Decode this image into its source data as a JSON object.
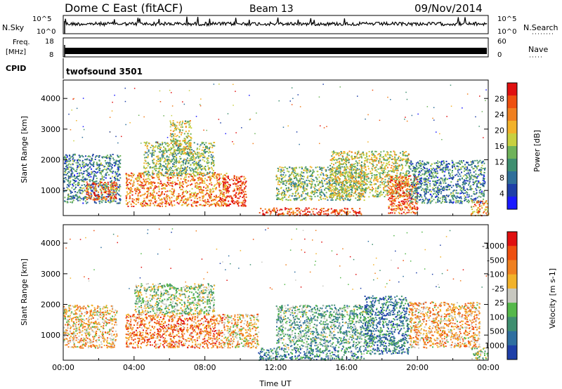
{
  "header": {
    "station": "Dome C East (fitACF)",
    "beam": "Beam 13",
    "date": "09/Nov/2014"
  },
  "strip_labels": {
    "nsky": "N.Sky",
    "nsearch": "N.Search",
    "freq_line1": "Freq.",
    "freq_line2": "[MHz]",
    "nave": "Nave",
    "cpid": "CPID",
    "cpid_value": "twofsound 3501",
    "nsky_ticks": [
      "10^5",
      "10^0"
    ],
    "nsearch_ticks": [
      "10^5",
      "10^0"
    ],
    "freq_ticks": [
      "18",
      "8"
    ],
    "nave_ticks": [
      "60",
      "0"
    ]
  },
  "chart_data": [
    {
      "type": "heatmap",
      "name": "power",
      "ylabel": "Slant Range [km]",
      "xlabel": "",
      "xlim": [
        0,
        24
      ],
      "ylim": [
        180,
        4600
      ],
      "yticks": [
        1000,
        2000,
        3000,
        4000
      ],
      "colorbar": {
        "label": "Power [dB]",
        "ticks": [
          "4",
          "8",
          "12",
          "16",
          "20",
          "24",
          "28"
        ],
        "colors": [
          "#1a1aff",
          "#1e3fa8",
          "#2f6f9a",
          "#3f8f70",
          "#6fb35a",
          "#c8d040",
          "#f2b22a",
          "#f08020",
          "#ee5010",
          "#e01010"
        ]
      },
      "blobs": [
        {
          "x0": 0.0,
          "x1": 3.2,
          "y0": 600,
          "y1": 2200,
          "level": 0.3
        },
        {
          "x0": 1.2,
          "x1": 3.0,
          "y0": 700,
          "y1": 1300,
          "level": 0.8
        },
        {
          "x0": 3.5,
          "x1": 9.2,
          "y0": 500,
          "y1": 1600,
          "level": 0.75
        },
        {
          "x0": 4.5,
          "x1": 8.5,
          "y0": 1500,
          "y1": 2600,
          "level": 0.45
        },
        {
          "x0": 6.0,
          "x1": 7.2,
          "y0": 2200,
          "y1": 3300,
          "level": 0.55
        },
        {
          "x0": 9.0,
          "x1": 10.3,
          "y0": 500,
          "y1": 1500,
          "level": 0.9
        },
        {
          "x0": 11.0,
          "x1": 16.8,
          "y0": 200,
          "y1": 450,
          "level": 0.85
        },
        {
          "x0": 12.0,
          "x1": 17.0,
          "y0": 700,
          "y1": 1800,
          "level": 0.45
        },
        {
          "x0": 15.0,
          "x1": 19.5,
          "y0": 800,
          "y1": 2300,
          "level": 0.55
        },
        {
          "x0": 18.3,
          "x1": 20.0,
          "y0": 250,
          "y1": 1500,
          "level": 0.85
        },
        {
          "x0": 19.5,
          "x1": 23.8,
          "y0": 600,
          "y1": 2000,
          "level": 0.3
        },
        {
          "x0": 23.0,
          "x1": 24.0,
          "y0": 200,
          "y1": 700,
          "level": 0.7
        }
      ]
    },
    {
      "type": "heatmap",
      "name": "velocity",
      "ylabel": "Slant Range [km]",
      "xlabel": "Time UT",
      "xlim": [
        0,
        24
      ],
      "ylim": [
        180,
        4600
      ],
      "xticks": [
        "00:00",
        "04:00",
        "08:00",
        "12:00",
        "16:00",
        "20:00",
        "00:00"
      ],
      "yticks": [
        1000,
        2000,
        3000,
        4000
      ],
      "colorbar": {
        "label": "Velocity [m s-1]",
        "ticks": [
          "1000",
          "500",
          "100",
          "25",
          "-25",
          "-100",
          "-500",
          "-1000"
        ],
        "colors": [
          "#1e3fa8",
          "#2f6fa0",
          "#3f8f70",
          "#55b84a",
          "#c8c8c0",
          "#f2b22a",
          "#f08020",
          "#ee5010",
          "#e01010"
        ]
      },
      "blobs": [
        {
          "x0": 0.0,
          "x1": 3.0,
          "y0": 600,
          "y1": 2000,
          "level": 0.6
        },
        {
          "x0": 3.5,
          "x1": 9.0,
          "y0": 600,
          "y1": 1700,
          "level": 0.75
        },
        {
          "x0": 4.0,
          "x1": 8.5,
          "y0": 1700,
          "y1": 2700,
          "level": 0.45
        },
        {
          "x0": 9.0,
          "x1": 11.0,
          "y0": 600,
          "y1": 1700,
          "level": 0.6
        },
        {
          "x0": 11.0,
          "x1": 17.0,
          "y0": 200,
          "y1": 600,
          "level": 0.25
        },
        {
          "x0": 12.0,
          "x1": 17.5,
          "y0": 600,
          "y1": 2000,
          "level": 0.35
        },
        {
          "x0": 17.0,
          "x1": 19.5,
          "y0": 400,
          "y1": 2300,
          "level": 0.2
        },
        {
          "x0": 19.5,
          "x1": 23.5,
          "y0": 600,
          "y1": 2100,
          "level": 0.65
        },
        {
          "x0": 23.0,
          "x1": 24.0,
          "y0": 200,
          "y1": 600,
          "level": 0.45
        }
      ]
    }
  ]
}
